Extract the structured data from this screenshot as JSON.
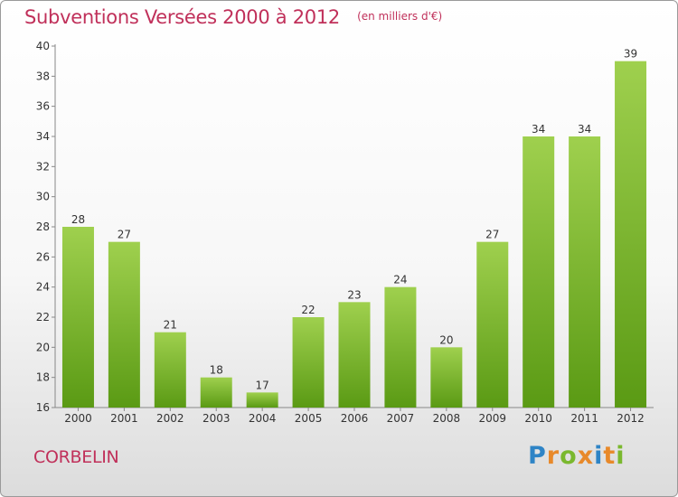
{
  "header": {
    "title": "Subventions Versées 2000 à 2012",
    "subtitle": "(en milliers d'€)"
  },
  "footer": {
    "commune": "CORBELIN",
    "brand": "Proxiti"
  },
  "colors": {
    "title": "#c0305a",
    "bar_top": "#9fd04e",
    "bar_bottom": "#5a9a14",
    "brand_letters": [
      "#2e84c6",
      "#e8892a",
      "#7ab82e",
      "#e8892a",
      "#2e84c6",
      "#e8892a",
      "#7ab82e"
    ]
  },
  "chart_data": {
    "type": "bar",
    "categories": [
      "2000",
      "2001",
      "2002",
      "2003",
      "2004",
      "2005",
      "2006",
      "2007",
      "2008",
      "2009",
      "2010",
      "2011",
      "2012"
    ],
    "values": [
      28,
      27,
      21,
      18,
      17,
      22,
      23,
      24,
      20,
      27,
      34,
      34,
      39
    ],
    "data_labels": [
      "28",
      "27",
      "21",
      "18",
      "17",
      "22",
      "23",
      "24",
      "20",
      "27",
      "34",
      "34",
      "39"
    ],
    "title": "Subventions Versées 2000 à 2012",
    "subtitle": "(en milliers d'€)",
    "ylim": [
      16,
      40
    ],
    "yticks": [
      16,
      18,
      20,
      22,
      24,
      26,
      28,
      30,
      32,
      34,
      36,
      38,
      40
    ],
    "grid": false,
    "legend": "none"
  }
}
